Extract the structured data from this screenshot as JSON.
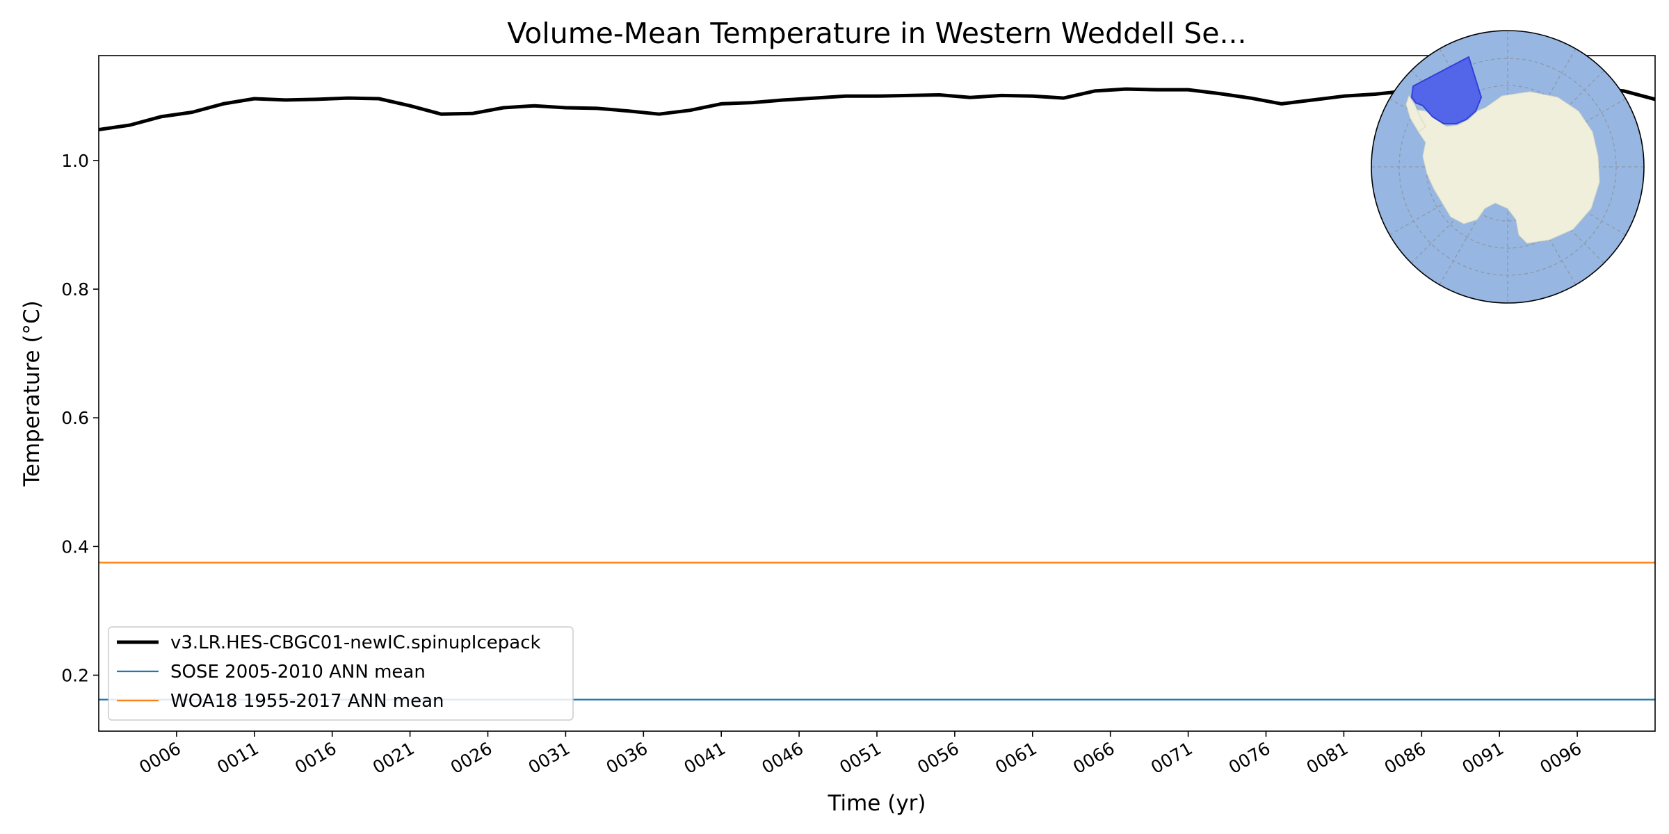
{
  "chart_data": {
    "type": "line",
    "title": "Volume-Mean Temperature in Western Weddell Se...",
    "xlabel": "Time (yr)",
    "ylabel": "Temperature (°C)",
    "xlim": [
      1,
      101
    ],
    "ylim": [
      0.113,
      1.163
    ],
    "x_tick_values": [
      6,
      11,
      16,
      21,
      26,
      31,
      36,
      41,
      46,
      51,
      56,
      61,
      66,
      71,
      76,
      81,
      86,
      91,
      96
    ],
    "x_tick_labels": [
      "0006",
      "0011",
      "0016",
      "0021",
      "0026",
      "0031",
      "0036",
      "0041",
      "0046",
      "0051",
      "0056",
      "0061",
      "0066",
      "0071",
      "0076",
      "0081",
      "0086",
      "0091",
      "0096"
    ],
    "y_tick_values": [
      0.2,
      0.4,
      0.6,
      0.8,
      1.0
    ],
    "y_tick_labels": [
      "0.2",
      "0.4",
      "0.6",
      "0.8",
      "1.0"
    ],
    "grid": false,
    "legend_position": "lower-left",
    "series": [
      {
        "name": "v3.LR.HES-CBGC01-newIC.spinupIcepack",
        "color": "#000000",
        "x": [
          1,
          3,
          5,
          7,
          9,
          11,
          13,
          15,
          17,
          19,
          21,
          23,
          25,
          27,
          29,
          31,
          33,
          35,
          37,
          39,
          41,
          43,
          45,
          47,
          49,
          51,
          53,
          55,
          57,
          59,
          61,
          63,
          65,
          67,
          69,
          71,
          73,
          75,
          77,
          79,
          81,
          83,
          85,
          87,
          89,
          91,
          93,
          95,
          97,
          99,
          101
        ],
        "values": [
          1.048,
          1.055,
          1.068,
          1.075,
          1.088,
          1.096,
          1.094,
          1.095,
          1.097,
          1.096,
          1.085,
          1.072,
          1.073,
          1.082,
          1.085,
          1.082,
          1.081,
          1.077,
          1.072,
          1.078,
          1.088,
          1.09,
          1.094,
          1.097,
          1.1,
          1.1,
          1.101,
          1.102,
          1.098,
          1.101,
          1.1,
          1.097,
          1.108,
          1.111,
          1.11,
          1.11,
          1.104,
          1.097,
          1.088,
          1.094,
          1.1,
          1.103,
          1.108,
          1.11,
          1.112,
          1.109,
          1.11,
          1.115,
          1.112,
          1.108,
          1.095
        ]
      },
      {
        "name": "SOSE 2005-2010 ANN mean",
        "color": "#1f77b4",
        "x": [
          1,
          101
        ],
        "values": [
          0.162,
          0.162
        ]
      },
      {
        "name": "WOA18 1955-2017 ANN mean",
        "color": "#ff7f0e",
        "x": [
          1,
          101
        ],
        "values": [
          0.375,
          0.375
        ]
      }
    ],
    "inset_map": {
      "projection": "south-polar-stereographic",
      "ocean_color": "#97b6e1",
      "land_color": "#efefdb",
      "region_color": "#4a5be9"
    }
  }
}
